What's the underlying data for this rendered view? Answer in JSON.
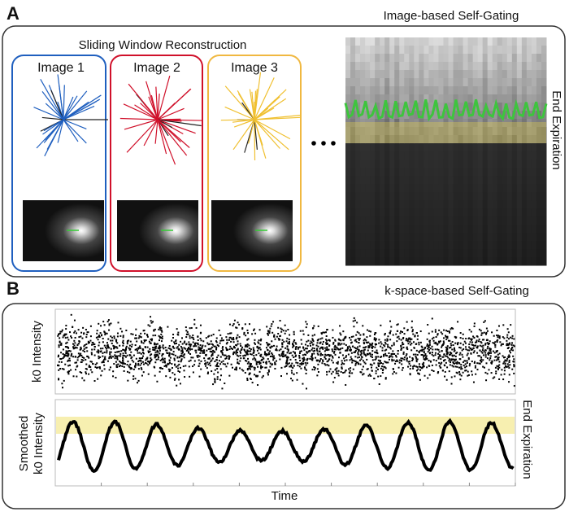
{
  "panel_a": {
    "label": "A",
    "title": "Image-based Self-Gating",
    "subtitle": "Sliding Window Reconstruction",
    "images": [
      "Image 1",
      "Image 2",
      "Image 3"
    ],
    "heatmap_label": "End Expiration"
  },
  "panel_b": {
    "label": "B",
    "title": "k-space-based Self-Gating",
    "top_ylabel": "k0 Intensity",
    "bottom_ylabel": [
      "Smoothed",
      "k0 Intensity"
    ],
    "bottom_right_label": "End Expiration",
    "xlabel": "Time"
  }
}
